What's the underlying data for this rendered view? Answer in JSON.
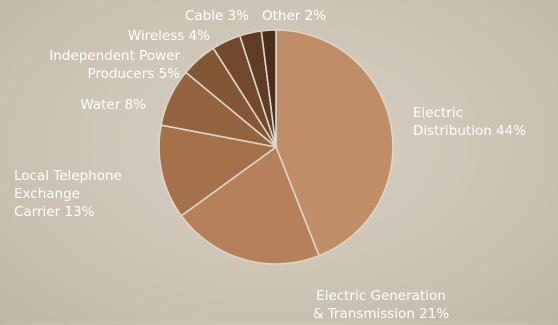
{
  "chart_data": {
    "type": "pie",
    "start": "12 o'clock",
    "direction": "clockwise",
    "slices": [
      {
        "label_lines": [
          "Electric",
          "Distribution 44%"
        ],
        "value": 44,
        "color": "#c08e66"
      },
      {
        "label_lines": [
          "Electric Generation",
          "& Transmission 21%"
        ],
        "value": 21,
        "color": "#b5805a"
      },
      {
        "label_lines": [
          "Local Telephone",
          "Exchange",
          "Carrier 13%"
        ],
        "value": 13,
        "color": "#a5714b"
      },
      {
        "label_lines": [
          "Water 8%"
        ],
        "value": 8,
        "color": "#946440"
      },
      {
        "label_lines": [
          "Independent Power",
          "Producers 5%"
        ],
        "value": 5,
        "color": "#835636"
      },
      {
        "label_lines": [
          "Wireless 4%"
        ],
        "value": 4,
        "color": "#72492d"
      },
      {
        "label_lines": [
          "Cable 3%"
        ],
        "value": 3,
        "color": "#5f3c24"
      },
      {
        "label_lines": [
          "Other 2%"
        ],
        "value": 2,
        "color": "#4b2f1c"
      }
    ]
  }
}
